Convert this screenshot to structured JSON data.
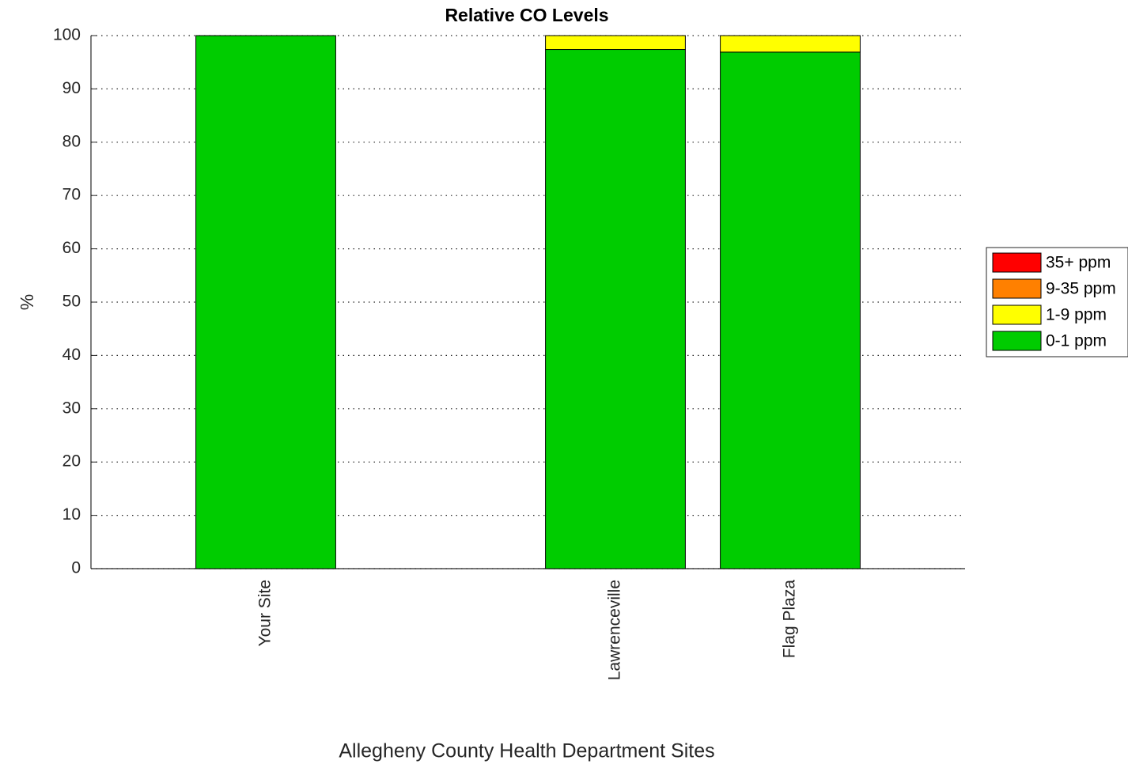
{
  "chart_data": {
    "type": "stacked_bar",
    "title": "Relative CO Levels",
    "x_label": "Allegheny County Health Department Sites",
    "y_label": "%",
    "categories": [
      "Your Site",
      null,
      "Lawrenceville",
      "Flag Plaza"
    ],
    "series": [
      {
        "name": "0-1 ppm",
        "color": "#00cc00",
        "values": [
          100,
          0,
          97.4,
          96.9
        ]
      },
      {
        "name": "1-9 ppm",
        "color": "#ffff00",
        "values": [
          0,
          0,
          2.6,
          3.1
        ]
      },
      {
        "name": "9-35 ppm",
        "color": "#ff8000",
        "values": [
          0,
          0,
          0,
          0
        ]
      },
      {
        "name": "35+ ppm",
        "color": "#ff0000",
        "values": [
          0,
          0,
          0,
          0
        ]
      }
    ],
    "ylim": [
      0,
      100
    ],
    "yticks": [
      0,
      10,
      20,
      30,
      40,
      50,
      60,
      70,
      80,
      90,
      100
    ],
    "grid": true,
    "legend": "right"
  }
}
